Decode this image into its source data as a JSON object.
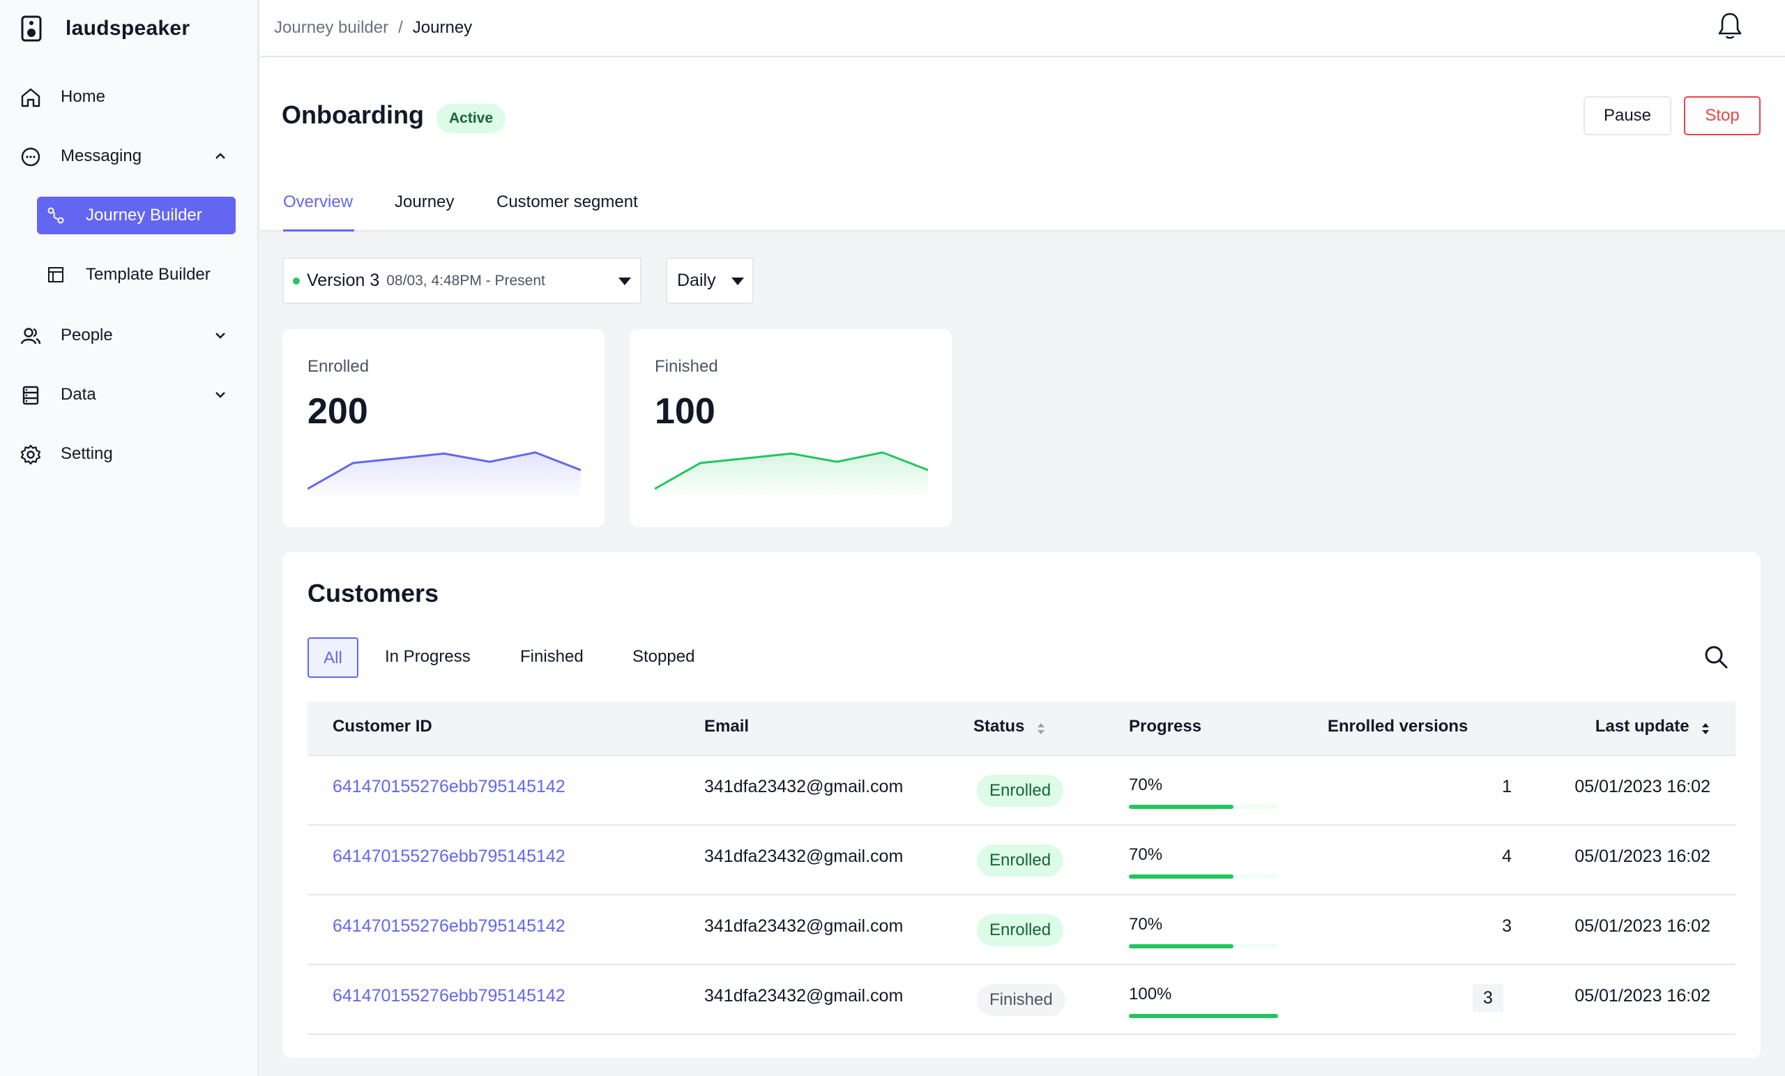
{
  "app": {
    "name": "laudspeaker"
  },
  "sidebar": {
    "items": [
      {
        "label": "Home",
        "icon": "home-icon"
      },
      {
        "label": "Messaging",
        "icon": "chat-bubble-icon"
      },
      {
        "label": "Journey Builder",
        "icon": "journey-icon"
      },
      {
        "label": "Template Builder",
        "icon": "template-icon"
      },
      {
        "label": "People",
        "icon": "people-icon"
      },
      {
        "label": "Data",
        "icon": "database-icon"
      },
      {
        "label": "Setting",
        "icon": "gear-icon"
      }
    ]
  },
  "breadcrumb": {
    "parent": "Journey builder",
    "separator": "/",
    "current": "Journey"
  },
  "journey": {
    "name": "Onboarding",
    "status": "Active",
    "pause_label": "Pause",
    "stop_label": "Stop"
  },
  "tabs": [
    "Overview",
    "Journey",
    "Customer segment"
  ],
  "filters": {
    "version": "Version 3",
    "version_dates": "08/03, 4:48PM - Present",
    "interval": "Daily"
  },
  "stats": [
    {
      "label": "Enrolled",
      "value": "200",
      "color": "#6366f1",
      "trend": [
        10,
        32,
        36,
        40,
        33,
        41,
        26
      ]
    },
    {
      "label": "Finished",
      "value": "100",
      "color": "#22c55e",
      "trend": [
        10,
        32,
        36,
        40,
        33,
        41,
        26
      ]
    }
  ],
  "customers": {
    "title": "Customers",
    "filter_tabs": [
      "All",
      "In Progress",
      "Finished",
      "Stopped"
    ],
    "columns": [
      "Customer ID",
      "Email",
      "Status",
      "Progress",
      "Enrolled versions",
      "Last update"
    ],
    "rows": [
      {
        "id": "641470155276ebb795145142",
        "email": "341dfa23432@gmail.com",
        "status": "Enrolled",
        "progress_label": "70%",
        "progress": 0.7,
        "versions": "1",
        "updated": "05/01/2023 16:02"
      },
      {
        "id": "641470155276ebb795145142",
        "email": "341dfa23432@gmail.com",
        "status": "Enrolled",
        "progress_label": "70%",
        "progress": 0.7,
        "versions": "4",
        "updated": "05/01/2023 16:02"
      },
      {
        "id": "641470155276ebb795145142",
        "email": "341dfa23432@gmail.com",
        "status": "Enrolled",
        "progress_label": "70%",
        "progress": 0.7,
        "versions": "3",
        "updated": "05/01/2023 16:02"
      },
      {
        "id": "641470155276ebb795145142",
        "email": "341dfa23432@gmail.com",
        "status": "Finished",
        "progress_label": "100%",
        "progress": 1.0,
        "versions": "3",
        "updated": "05/01/2023 16:02"
      }
    ]
  }
}
